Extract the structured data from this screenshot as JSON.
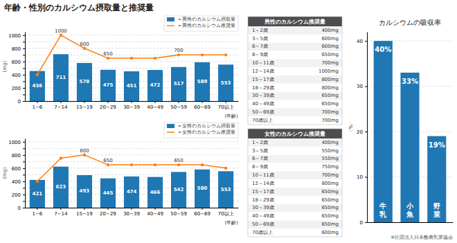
{
  "title": "年齢・性別のカルシウム摂取量と推奨量",
  "chart_data": [
    {
      "type": "bar",
      "categories": [
        "1~6",
        "7~14",
        "15~19",
        "20~29",
        "30~39",
        "40~49",
        "50~59",
        "60~69",
        "70以上"
      ],
      "series": [
        {
          "name": "＝男性のカルシウム摂取量",
          "type": "bar",
          "values": [
            456,
            711,
            578,
            475,
            451,
            472,
            517,
            589,
            553
          ],
          "data_labels": true
        },
        {
          "name": "＝男性のカルシウム推奨量",
          "type": "line",
          "marker": "circle",
          "values": [
            400,
            1000,
            800,
            650,
            650,
            650,
            700,
            700,
            700
          ],
          "data_labels": true,
          "value_labels": [
            null,
            "1000",
            "800",
            "650",
            null,
            null,
            "700",
            null,
            null
          ]
        }
      ],
      "ylim": [
        0,
        1050
      ],
      "yticks": [
        0,
        {
          "value": 100,
          "label": null
        },
        200,
        {
          "value": 300,
          "label": null
        },
        400,
        {
          "value": 500,
          "label": null
        },
        600,
        {
          "value": 700,
          "label": null
        },
        800,
        {
          "value": 900,
          "label": null
        },
        1000
      ],
      "xlabel": "(年齢)",
      "ylabel": "(mg)",
      "grid": true,
      "legend": "upper right"
    },
    {
      "type": "bar",
      "categories": [
        "1~6",
        "7~14",
        "15~19",
        "20~29",
        "30~39",
        "40~49",
        "50~59",
        "60~69",
        "70以上"
      ],
      "series": [
        {
          "name": "＝女性のカルシウム摂取量",
          "type": "bar",
          "values": [
            421,
            623,
            493,
            445,
            474,
            466,
            542,
            580,
            553
          ],
          "data_labels": true
        },
        {
          "name": "＝女性のカルシウム推奨量",
          "type": "line",
          "marker": "circle",
          "values": [
            400,
            750,
            800,
            650,
            650,
            650,
            650,
            650,
            600
          ],
          "data_labels": true,
          "value_labels": [
            null,
            null,
            "800",
            "650",
            null,
            null,
            "650",
            null,
            null
          ]
        }
      ],
      "ylim": [
        0,
        1050
      ],
      "yticks": [
        0,
        {
          "value": 100,
          "label": null
        },
        200,
        {
          "value": 300,
          "label": null
        },
        400,
        {
          "value": 500,
          "label": null
        },
        600,
        {
          "value": 700,
          "label": null
        },
        800,
        {
          "value": 900,
          "label": null
        },
        1000
      ],
      "xlabel": "(年齢)",
      "ylabel": "(mg)",
      "grid": true,
      "legend": "upper right"
    },
    {
      "type": "table",
      "title": "男性のカルシウム推奨量",
      "categories": [
        "1～2歳",
        "3～5歳",
        "6～7歳",
        "8～9歳",
        "10～11歳",
        "12～14歳",
        "15～17歳",
        "18～29歳",
        "30～39歳",
        "40～49歳",
        "50～69歳",
        "70歳以上"
      ],
      "values": [
        400,
        600,
        600,
        650,
        700,
        1000,
        800,
        800,
        650,
        650,
        700,
        700
      ],
      "value_labels": [
        "400mg",
        "600mg",
        "600mg",
        "650mg",
        "700mg",
        "1000mg",
        "800mg",
        "800mg",
        "650mg",
        "650mg",
        "700mg",
        "700mg"
      ]
    },
    {
      "type": "table",
      "title": "女性のカルシウム推奨量",
      "categories": [
        "1～2歳",
        "3～5歳",
        "6～7歳",
        "8～9歳",
        "10～11歳",
        "12～14歳",
        "15～17歳",
        "18～29歳",
        "30～39歳",
        "40～49歳",
        "50～69歳",
        "70歳以上"
      ],
      "values": [
        400,
        550,
        550,
        750,
        700,
        800,
        650,
        650,
        650,
        650,
        650,
        600
      ],
      "value_labels": [
        "400mg",
        "550mg",
        "550mg",
        "750mg",
        "700mg",
        "800mg",
        "650mg",
        "650mg",
        "650mg",
        "650mg",
        "650mg",
        "600mg"
      ]
    },
    {
      "type": "bar",
      "title": "カルシウムの吸収率",
      "categories": [
        "牛\n乳",
        "小\n魚",
        "野\n菜"
      ],
      "values": [
        40,
        33,
        19
      ],
      "value_labels": [
        "40%",
        "33%",
        "19%"
      ],
      "data_labels": true,
      "ylim": [
        0,
        42
      ],
      "yticks": [
        0,
        10,
        20,
        30,
        40
      ],
      "ylabel": "〈%〉",
      "grid": true,
      "tick_labels": "y",
      "annotations": [
        "※社団法人日本酪農乳業協会"
      ]
    }
  ]
}
